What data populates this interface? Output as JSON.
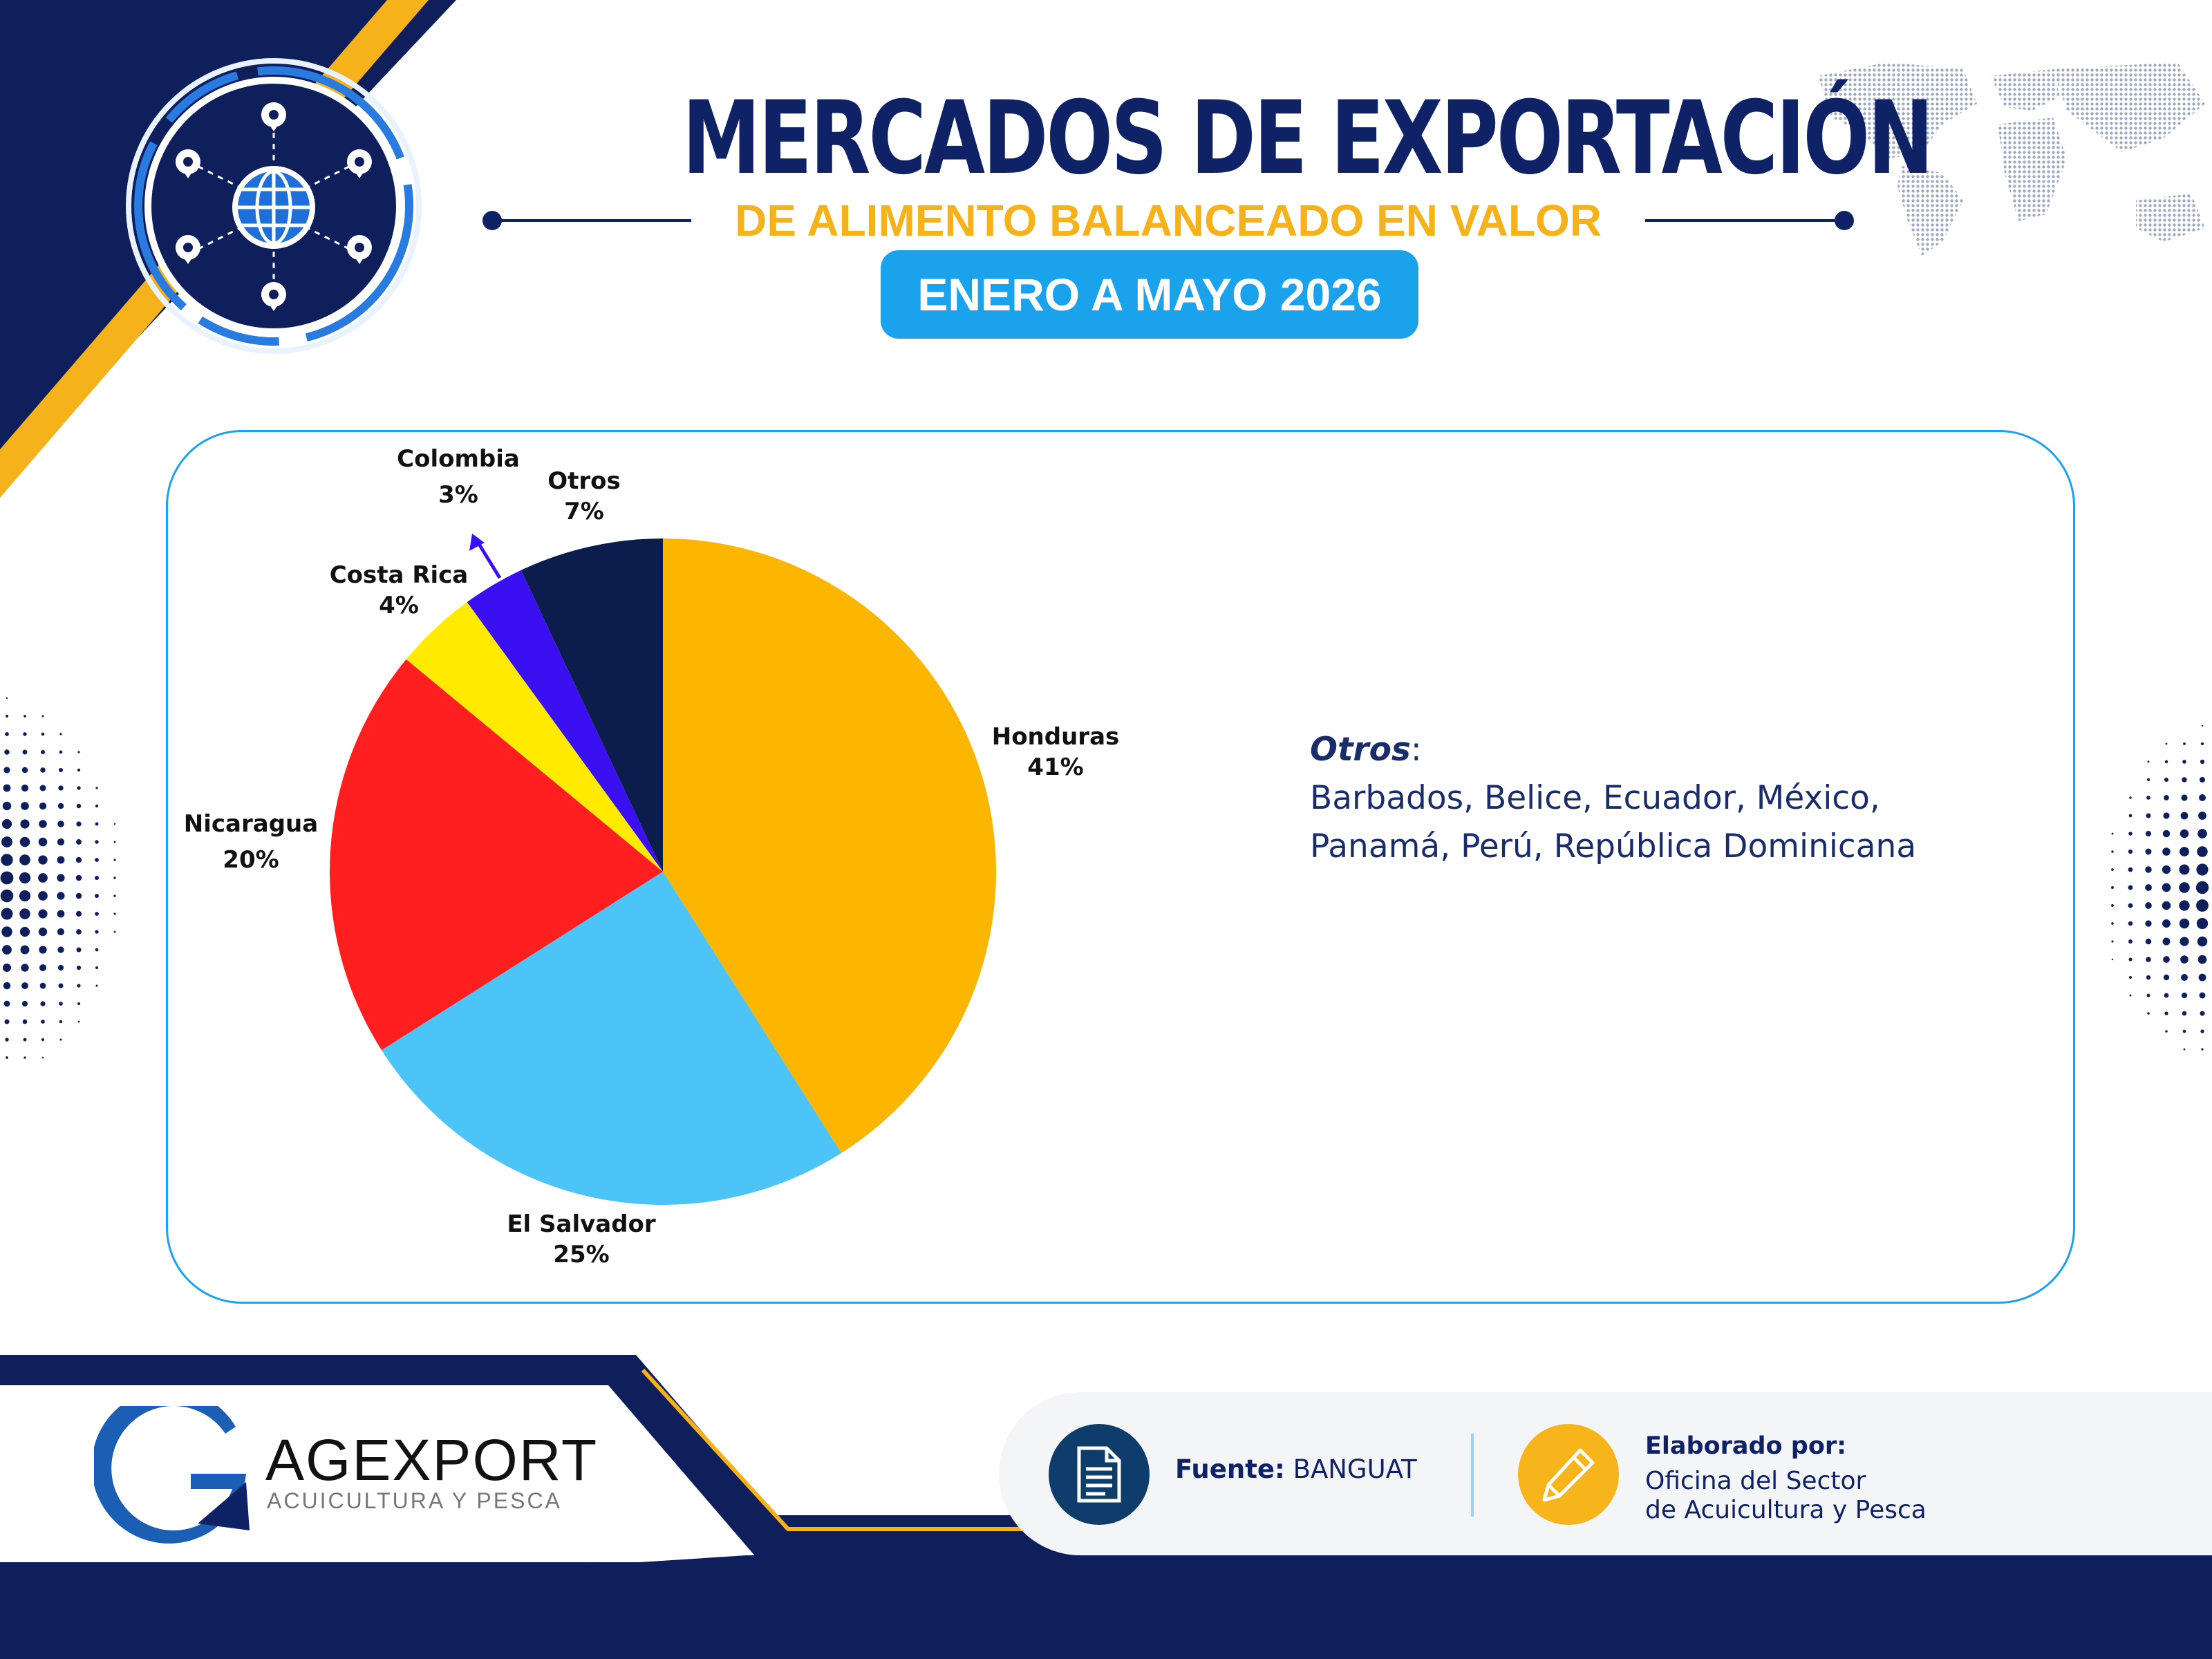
{
  "header": {
    "title": "MERCADOS DE EXPORTACIÓN",
    "subtitle": "DE ALIMENTO BALANCEADO EN VALOR",
    "period": "ENERO A MAYO 2026"
  },
  "colors": {
    "navy": "#0f2266",
    "gold": "#f6b21b",
    "accent_blue": "#1aa3ec"
  },
  "chart_data": {
    "type": "pie",
    "start_angle_deg": 0,
    "direction": "clockwise",
    "slices": [
      {
        "label": "Honduras",
        "percent_label": "41%",
        "value": 41,
        "color": "#fdb600"
      },
      {
        "label": "El Salvador",
        "percent_label": "25%",
        "value": 25,
        "color": "#4cc4f7"
      },
      {
        "label": "Nicaragua",
        "percent_label": "20%",
        "value": 20,
        "color": "#ff1f1f"
      },
      {
        "label": "Costa Rica",
        "percent_label": "4%",
        "value": 4,
        "color": "#ffea00"
      },
      {
        "label": "Colombia",
        "percent_label": "3%",
        "value": 3,
        "color": "#3a10f2"
      },
      {
        "label": "Otros",
        "percent_label": "7%",
        "value": 7,
        "color": "#0c1c4d"
      }
    ]
  },
  "otros_note": {
    "title": "Otros",
    "colon": ":",
    "line1": "Barbados, Belice, Ecuador, México,",
    "line2": "Panamá, Perú, República Dominicana"
  },
  "footer": {
    "brand_name": "AGEXPORT",
    "brand_sub": "ACUICULTURA Y PESCA",
    "source_label": "Fuente:",
    "source_value": "BANGUAT",
    "author_heading": "Elaborado por:",
    "author_line1": "Oficina del Sector",
    "author_line2": "de Acuicultura y Pesca"
  },
  "icons": {
    "globe": "globe-network-icon",
    "map": "world-map-icon",
    "source": "document-icon",
    "author": "pencil-icon"
  }
}
